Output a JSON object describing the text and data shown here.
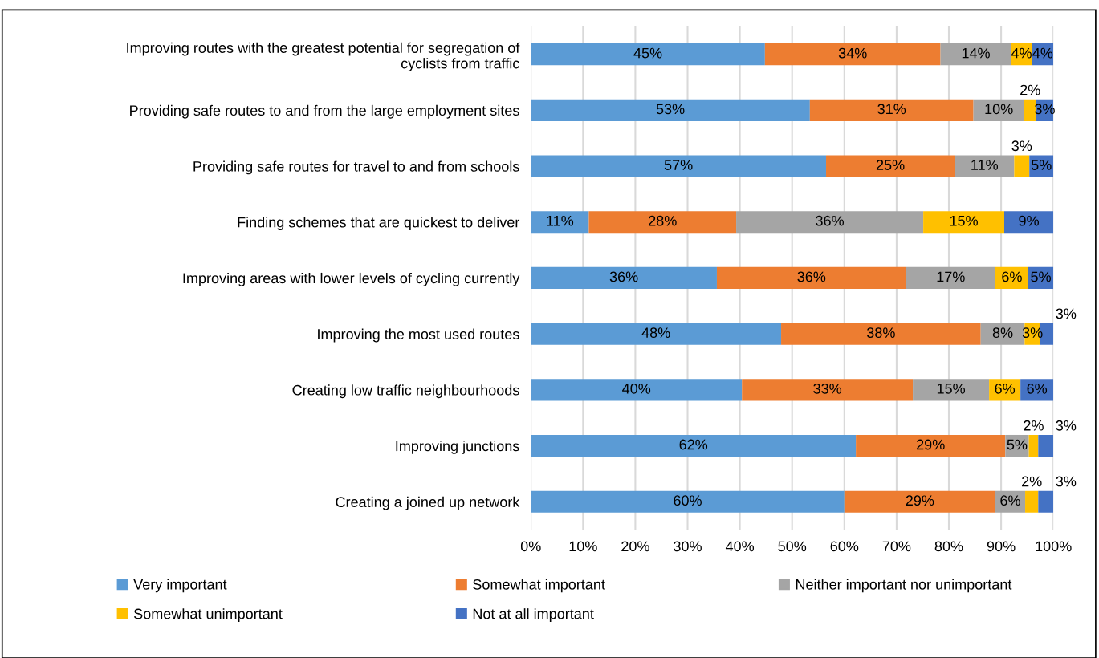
{
  "chart_data": {
    "type": "bar",
    "orientation": "horizontal",
    "stacked": true,
    "categories": [
      "Improving routes with the greatest potential for segregation of\ncyclists from traffic",
      "Providing safe routes to and from the large employment sites",
      "Providing safe routes for travel to and from schools",
      "Finding schemes that are quickest to deliver",
      "Improving areas with lower levels of cycling currently",
      "Improving the most used routes",
      "Creating low traffic neighbourhoods",
      "Improving junctions",
      "Creating a joined up network"
    ],
    "series": [
      {
        "name": "Very important",
        "color": "#5b9bd5",
        "values": [
          44.8,
          53.4,
          56.5,
          11.1,
          35.6,
          47.9,
          40.4,
          62.2,
          60.0
        ],
        "value_labels": [
          "45%",
          "53%",
          "57%",
          "11%",
          "36%",
          "48%",
          "40%",
          "62%",
          "60%"
        ]
      },
      {
        "name": "Somewhat important",
        "color": "#ed7d31",
        "values": [
          33.6,
          31.3,
          24.6,
          28.2,
          36.2,
          38.2,
          32.7,
          28.6,
          28.9
        ],
        "value_labels": [
          "34%",
          "31%",
          "25%",
          "28%",
          "36%",
          "38%",
          "33%",
          "29%",
          "29%"
        ]
      },
      {
        "name": "Neither important nor unimportant",
        "color": "#a5a5a5",
        "values": [
          13.5,
          9.7,
          11.4,
          35.8,
          17.1,
          8.4,
          14.6,
          4.5,
          5.7
        ],
        "value_labels": [
          "14%",
          "10%",
          "11%",
          "36%",
          "17%",
          "8%",
          "15%",
          "5%",
          "6%"
        ]
      },
      {
        "name": "Somewhat unimportant",
        "color": "#ffc000",
        "values": [
          4.0,
          2.3,
          2.9,
          15.5,
          6.3,
          3.0,
          6.0,
          1.8,
          2.5
        ],
        "value_labels": [
          "4%",
          "2%",
          "3%",
          "15%",
          "6%",
          "3%",
          "6%",
          "2%",
          "2%"
        ]
      },
      {
        "name": "Not at all important",
        "color": "#4472c4",
        "values": [
          4.1,
          3.3,
          4.6,
          9.4,
          4.8,
          2.5,
          6.3,
          2.9,
          2.9
        ],
        "value_labels": [
          "4%",
          "3%",
          "5%",
          "9%",
          "5%",
          "3%",
          "6%",
          "3%",
          "3%"
        ]
      }
    ],
    "xlim": [
      0,
      100
    ],
    "xticks": [
      {
        "value": 0,
        "label": "0%"
      },
      {
        "value": 10,
        "label": "10%"
      },
      {
        "value": 20,
        "label": "20%"
      },
      {
        "value": 30,
        "label": "30%"
      },
      {
        "value": 40,
        "label": "40%"
      },
      {
        "value": 50,
        "label": "50%"
      },
      {
        "value": 60,
        "label": "60%"
      },
      {
        "value": 70,
        "label": "70%"
      },
      {
        "value": 80,
        "label": "80%"
      },
      {
        "value": 90,
        "label": "90%"
      },
      {
        "value": 100,
        "label": "100%"
      }
    ],
    "grid": "x",
    "legend": "bottom"
  }
}
